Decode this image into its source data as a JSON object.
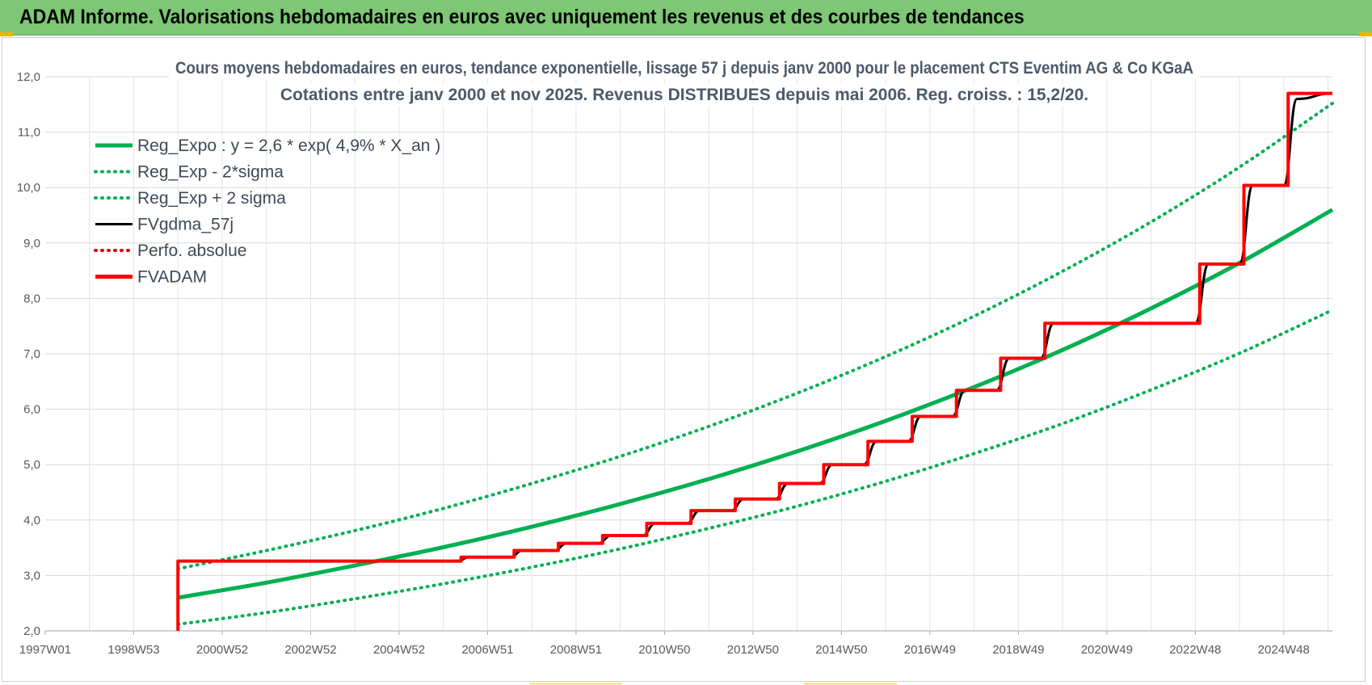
{
  "header": {
    "title": "ADAM Informe. Valorisations hebdomadaires en euros avec uniquement les revenus et des courbes de tendances"
  },
  "chart_data": {
    "type": "line",
    "title": [
      "Cours moyens hebdomadaires en euros, tendance exponentielle, lissage 57 j depuis janv 2000  pour le placement CTS Eventim AG & Co KGaA",
      "Cotations entre janv 2000 et nov 2025. Revenus DISTRIBUES depuis mai 2006.  Reg. croiss. : 15,2/20."
    ],
    "xlabel": "",
    "ylabel": "",
    "x_range": [
      1997.0,
      2026.1
    ],
    "ylim": [
      2.0,
      12.0
    ],
    "x_ticks": [
      "1997W01",
      "1998W53",
      "2000W52",
      "2002W52",
      "2004W52",
      "2006W51",
      "2008W51",
      "2010W50",
      "2012W50",
      "2014W50",
      "2016W49",
      "2018W49",
      "2020W49",
      "2022W48",
      "2024W48"
    ],
    "x_tick_years": [
      1997.0,
      1999.0,
      2001.0,
      2003.0,
      2005.0,
      2007.0,
      2009.0,
      2011.0,
      2013.0,
      2015.0,
      2017.0,
      2019.0,
      2021.0,
      2023.0,
      2025.0
    ],
    "y_ticks": [
      "2,0",
      "3,0",
      "4,0",
      "5,0",
      "6,0",
      "7,0",
      "8,0",
      "9,0",
      "10,0",
      "11,0",
      "12,0"
    ],
    "y_tick_values": [
      2,
      3,
      4,
      5,
      6,
      7,
      8,
      9,
      10,
      11,
      12
    ],
    "grid": true,
    "legend_position": "top-left",
    "series": [
      {
        "name": "Reg_Expo : y = 2,6 * exp( 4,9% *  X_an )",
        "color": "#00b050",
        "style": "solid",
        "x": [
          2000.0,
          2002.0,
          2004.0,
          2006.0,
          2008.0,
          2010.0,
          2012.0,
          2014.0,
          2016.0,
          2018.0,
          2020.0,
          2022.0,
          2024.0,
          2026.1
        ],
        "y": [
          2.6,
          2.87,
          3.18,
          3.51,
          3.88,
          4.29,
          4.74,
          5.24,
          5.79,
          6.4,
          7.07,
          7.82,
          8.64,
          9.6
        ]
      },
      {
        "name": "Reg_Exp - 2*sigma",
        "color": "#00b050",
        "style": "dotted",
        "x": [
          2000.0,
          2002.0,
          2004.0,
          2006.0,
          2008.0,
          2010.0,
          2012.0,
          2014.0,
          2016.0,
          2018.0,
          2020.0,
          2022.0,
          2024.0,
          2026.1
        ],
        "y": [
          2.12,
          2.33,
          2.58,
          2.85,
          3.15,
          3.48,
          3.85,
          4.25,
          4.7,
          5.2,
          5.74,
          6.35,
          7.01,
          7.79
        ]
      },
      {
        "name": "Reg_Exp + 2 sigma",
        "color": "#00b050",
        "style": "dotted",
        "x": [
          2000.0,
          2002.0,
          2004.0,
          2006.0,
          2008.0,
          2010.0,
          2012.0,
          2014.0,
          2016.0,
          2018.0,
          2020.0,
          2022.0,
          2024.0,
          2026.1
        ],
        "y": [
          3.12,
          3.45,
          3.81,
          4.21,
          4.66,
          5.15,
          5.69,
          6.29,
          6.95,
          7.68,
          8.49,
          9.38,
          10.37,
          11.52
        ]
      },
      {
        "name": "FVgdma_57j",
        "color": "#000000",
        "style": "solid",
        "x": [
          2000.0,
          2006.3,
          2006.6,
          2007.5,
          2007.8,
          2008.5,
          2008.8,
          2009.5,
          2009.8,
          2010.5,
          2010.8,
          2011.5,
          2011.8,
          2012.5,
          2012.8,
          2013.5,
          2013.8,
          2014.5,
          2014.8,
          2015.5,
          2015.8,
          2016.5,
          2016.8,
          2017.5,
          2017.8,
          2018.5,
          2018.8,
          2019.5,
          2019.8,
          2023.0,
          2023.3,
          2024.0,
          2024.3,
          2025.0,
          2025.3,
          2026.1
        ],
        "y": [
          3.26,
          3.26,
          3.33,
          3.33,
          3.45,
          3.45,
          3.58,
          3.58,
          3.72,
          3.72,
          3.94,
          3.94,
          4.17,
          4.17,
          4.38,
          4.38,
          4.66,
          4.66,
          5.0,
          5.0,
          5.42,
          5.42,
          5.87,
          5.87,
          6.34,
          6.34,
          6.92,
          6.92,
          7.55,
          7.55,
          8.62,
          8.62,
          10.04,
          10.04,
          11.6,
          11.7
        ]
      },
      {
        "name": "Perfo. absolue",
        "color": "#e00000",
        "style": "dotted",
        "x": [],
        "y": []
      },
      {
        "name": "FVADAM",
        "color": "#ff0000",
        "style": "step",
        "x": [
          2000.0,
          2000.0,
          2006.4,
          2007.6,
          2008.6,
          2009.6,
          2010.6,
          2011.6,
          2012.6,
          2013.6,
          2014.6,
          2015.6,
          2016.6,
          2017.6,
          2018.6,
          2019.6,
          2023.1,
          2024.1,
          2025.1,
          2026.1
        ],
        "y": [
          2.0,
          3.26,
          3.33,
          3.45,
          3.58,
          3.72,
          3.94,
          4.17,
          4.38,
          4.66,
          5.0,
          5.42,
          5.87,
          6.34,
          6.92,
          7.55,
          8.62,
          10.04,
          11.7,
          11.7
        ]
      }
    ]
  }
}
